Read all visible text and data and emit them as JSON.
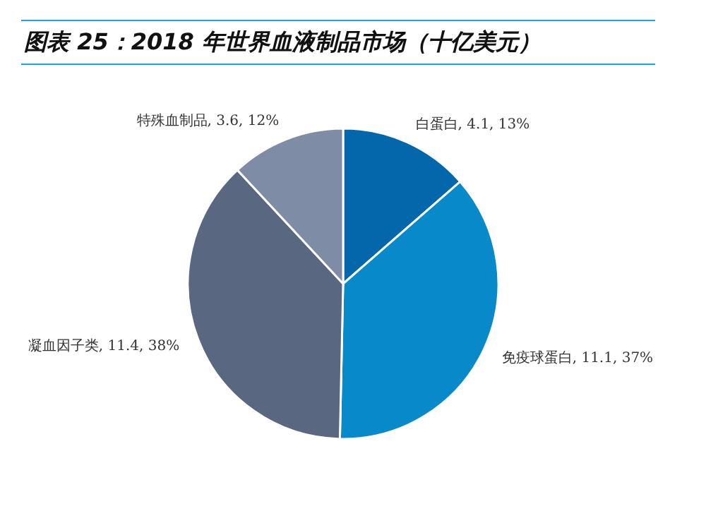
{
  "chart_data": {
    "type": "pie",
    "title": "图表 25：2018 年世界血液制品市场（十亿美元）",
    "categories": [
      "白蛋白",
      "免疫球蛋白",
      "凝血因子类",
      "特殊血制品"
    ],
    "values": [
      4.1,
      11.1,
      11.4,
      3.6
    ],
    "colors": [
      "#0466ab",
      "#0889c9",
      "#5a6781",
      "#7f8ca6"
    ],
    "value_labels": [
      "4.1, 13%",
      "11.1, 37%",
      "11.4, 38%",
      "3.6, 12%"
    ]
  }
}
